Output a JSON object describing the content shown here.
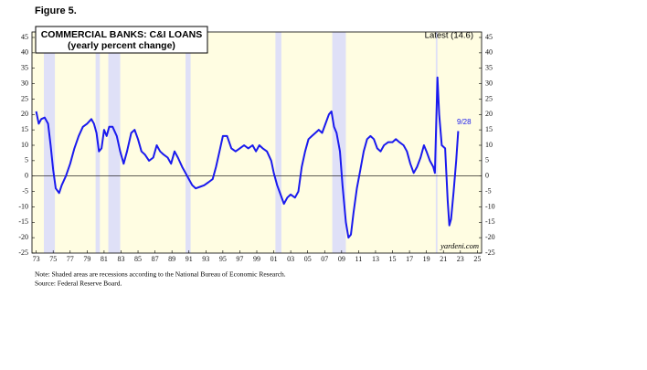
{
  "figure_label": "Figure 5.",
  "chart_data": {
    "type": "line",
    "title": "COMMERCIAL BANKS: C&I LOANS",
    "subtitle": "(yearly percent change)",
    "latest_label": "Latest (14.6)",
    "end_label": "9/28",
    "source_mark": "yardeni.com",
    "notes": [
      "Note: Shaded areas are recessions according to the National Bureau of Economic Research.",
      "Source: Federal Reserve Board."
    ],
    "xlim": [
      1972.5,
      2025.5
    ],
    "ylim": [
      -25,
      45
    ],
    "yticks": [
      -25,
      -20,
      -15,
      -10,
      -5,
      0,
      5,
      10,
      15,
      20,
      25,
      30,
      35,
      40,
      45
    ],
    "xticks": [
      {
        "value": 1973,
        "label": "73"
      },
      {
        "value": 1975,
        "label": "75"
      },
      {
        "value": 1977,
        "label": "77"
      },
      {
        "value": 1979,
        "label": "79"
      },
      {
        "value": 1981,
        "label": "81"
      },
      {
        "value": 1983,
        "label": "83"
      },
      {
        "value": 1985,
        "label": "85"
      },
      {
        "value": 1987,
        "label": "87"
      },
      {
        "value": 1989,
        "label": "89"
      },
      {
        "value": 1991,
        "label": "91"
      },
      {
        "value": 1993,
        "label": "93"
      },
      {
        "value": 1995,
        "label": "95"
      },
      {
        "value": 1997,
        "label": "97"
      },
      {
        "value": 1999,
        "label": "99"
      },
      {
        "value": 2001,
        "label": "01"
      },
      {
        "value": 2003,
        "label": "03"
      },
      {
        "value": 2005,
        "label": "05"
      },
      {
        "value": 2007,
        "label": "07"
      },
      {
        "value": 2009,
        "label": "09"
      },
      {
        "value": 2011,
        "label": "11"
      },
      {
        "value": 2013,
        "label": "13"
      },
      {
        "value": 2015,
        "label": "15"
      },
      {
        "value": 2017,
        "label": "17"
      },
      {
        "value": 2019,
        "label": "19"
      },
      {
        "value": 2021,
        "label": "21"
      },
      {
        "value": 2023,
        "label": "23"
      },
      {
        "value": 2025,
        "label": "25"
      }
    ],
    "recessions": [
      [
        1973.9,
        1975.2
      ],
      [
        1980.0,
        1980.5
      ],
      [
        1981.5,
        1982.9
      ],
      [
        1990.6,
        1991.2
      ],
      [
        2001.2,
        2001.9
      ],
      [
        2007.9,
        2009.5
      ],
      [
        2020.1,
        2020.3
      ]
    ],
    "background_color": "#fffde2",
    "recession_color": "#dfe0f7",
    "series": [
      {
        "name": "C&I loans",
        "color": "#1a1aee",
        "x": [
          1973.0,
          1973.3,
          1973.6,
          1974.0,
          1974.4,
          1974.7,
          1975.0,
          1975.3,
          1975.7,
          1976.0,
          1976.5,
          1977.0,
          1977.5,
          1978.0,
          1978.5,
          1979.0,
          1979.5,
          1979.8,
          1980.1,
          1980.4,
          1980.7,
          1981.0,
          1981.3,
          1981.6,
          1982.0,
          1982.5,
          1982.9,
          1983.3,
          1983.7,
          1984.2,
          1984.6,
          1985.0,
          1985.4,
          1985.8,
          1986.3,
          1986.8,
          1987.2,
          1987.6,
          1988.0,
          1988.5,
          1988.9,
          1989.3,
          1989.7,
          1990.2,
          1990.6,
          1991.0,
          1991.4,
          1991.8,
          1992.3,
          1992.8,
          1993.3,
          1993.8,
          1994.2,
          1994.6,
          1995.0,
          1995.5,
          1996.0,
          1996.5,
          1997.0,
          1997.5,
          1998.0,
          1998.5,
          1998.9,
          1999.3,
          1999.7,
          2000.2,
          2000.7,
          2001.0,
          2001.4,
          2001.8,
          2002.2,
          2002.6,
          2003.0,
          2003.5,
          2003.9,
          2004.3,
          2004.7,
          2005.1,
          2005.5,
          2005.9,
          2006.3,
          2006.7,
          2007.1,
          2007.5,
          2007.8,
          2008.1,
          2008.4,
          2008.8,
          2009.1,
          2009.5,
          2009.8,
          2010.1,
          2010.4,
          2010.8,
          2011.2,
          2011.6,
          2012.0,
          2012.4,
          2012.8,
          2013.2,
          2013.6,
          2014.0,
          2014.5,
          2015.0,
          2015.4,
          2015.8,
          2016.3,
          2016.7,
          2017.1,
          2017.5,
          2017.9,
          2018.3,
          2018.7,
          2019.0,
          2019.4,
          2019.8,
          2020.0,
          2020.3,
          2020.5,
          2020.8,
          2021.2,
          2021.5,
          2021.7,
          2021.9,
          2022.2,
          2022.5,
          2022.74
        ],
        "values": [
          21,
          17,
          18.5,
          19,
          17,
          10,
          2,
          -4,
          -5.5,
          -3,
          0,
          4,
          9,
          13,
          16,
          17,
          18.5,
          17,
          14,
          8,
          9,
          15,
          13,
          16,
          16,
          13,
          8,
          4,
          8,
          14,
          15,
          12,
          8,
          7,
          5,
          6,
          10,
          8,
          7,
          6,
          4,
          8,
          6,
          3,
          1,
          -1,
          -3,
          -4,
          -3.5,
          -3,
          -2,
          -1,
          3,
          8,
          13,
          13,
          9,
          8,
          9,
          10,
          9,
          10,
          8,
          10,
          9,
          8,
          5,
          1,
          -3,
          -6,
          -9,
          -7,
          -6,
          -7,
          -5,
          3,
          8,
          12,
          13,
          14,
          15,
          14,
          17,
          20,
          21,
          16,
          14,
          8,
          -3,
          -15,
          -20,
          -19,
          -12,
          -4,
          2,
          8,
          12,
          13,
          12,
          9,
          8,
          10,
          11,
          11,
          12,
          11,
          10,
          8,
          4,
          1,
          3,
          6,
          10,
          8,
          5,
          3,
          1,
          32,
          20,
          10,
          9,
          -8,
          -16,
          -14,
          -5,
          5,
          14.6
        ]
      }
    ]
  }
}
